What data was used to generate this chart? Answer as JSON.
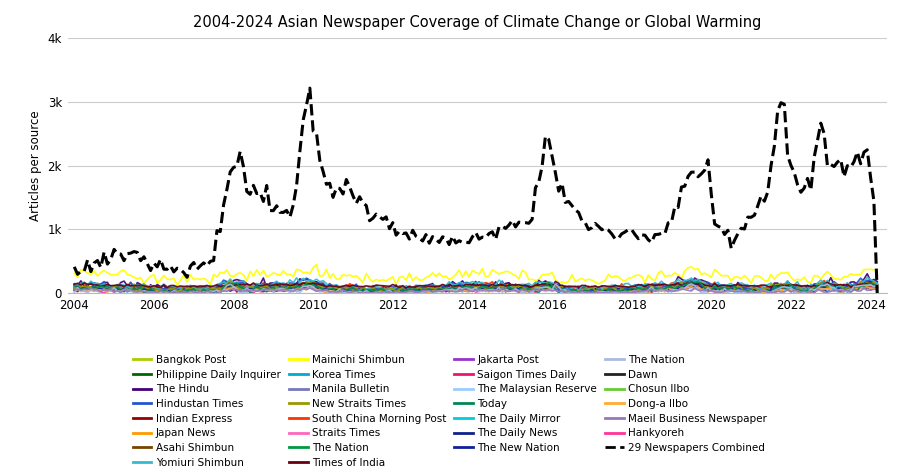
{
  "title": "2004-2024 Asian Newspaper Coverage of Climate Change or Global Warming",
  "ylabel": "Articles per source",
  "yticks": [
    0,
    1000,
    2000,
    3000,
    4000
  ],
  "ytick_labels": [
    "0",
    "1k",
    "2k",
    "3k",
    "4k"
  ],
  "ylim": [
    0,
    4000
  ],
  "xlim": [
    2003.83,
    2024.4
  ],
  "xticks": [
    2004,
    2006,
    2008,
    2010,
    2012,
    2014,
    2016,
    2018,
    2020,
    2022,
    2024
  ],
  "background_color": "#ffffff",
  "grid_color": "#cccccc",
  "legend_entries": [
    {
      "label": "Bangkok Post",
      "color": "#aacc00",
      "ls": "-"
    },
    {
      "label": "Indian Express",
      "color": "#990000",
      "ls": "-"
    },
    {
      "label": "Mainichi Shimbun",
      "color": "#ffff00",
      "ls": "-"
    },
    {
      "label": "South China Morning Post",
      "color": "#ff3300",
      "ls": "-"
    },
    {
      "label": "Jakarta Post",
      "color": "#9933cc",
      "ls": "-"
    },
    {
      "label": "The Daily Mirror",
      "color": "#00ccdd",
      "ls": "-"
    },
    {
      "label": "Dawn",
      "color": "#222222",
      "ls": "-"
    },
    {
      "label": "Hankyoreh",
      "color": "#ff3399",
      "ls": "-"
    },
    {
      "label": "Philippine Daily Inquirer",
      "color": "#006600",
      "ls": "-"
    },
    {
      "label": "Japan News",
      "color": "#ff9900",
      "ls": "-"
    },
    {
      "label": "Korea Times",
      "color": "#00aacc",
      "ls": "-"
    },
    {
      "label": "Straits Times",
      "color": "#ff66bb",
      "ls": "-"
    },
    {
      "label": "Saigon Times Daily",
      "color": "#ee1177",
      "ls": "-"
    },
    {
      "label": "The Daily News",
      "color": "#112288",
      "ls": "-"
    },
    {
      "label": "Chosun Ilbo",
      "color": "#66cc33",
      "ls": "-"
    },
    {
      "label": "29 Newspapers Combined",
      "color": "#000000",
      "ls": "--"
    },
    {
      "label": "The Hindu",
      "color": "#440077",
      "ls": "-"
    },
    {
      "label": "Asahi Shimbun",
      "color": "#774400",
      "ls": "-"
    },
    {
      "label": "Manila Bulletin",
      "color": "#7777bb",
      "ls": "-"
    },
    {
      "label": "The Nation",
      "color": "#009944",
      "ls": "-"
    },
    {
      "label": "The Malaysian Reserve",
      "color": "#99ccff",
      "ls": "-"
    },
    {
      "label": "The New Nation",
      "color": "#112299",
      "ls": "-"
    },
    {
      "label": "Dong-a Ilbo",
      "color": "#ffaa33",
      "ls": "-"
    },
    {
      "label": "Hindustan Times",
      "color": "#2255cc",
      "ls": "-"
    },
    {
      "label": "Yomiuri Shimbun",
      "color": "#33bbcc",
      "ls": "-"
    },
    {
      "label": "New Straits Times",
      "color": "#999900",
      "ls": "-"
    },
    {
      "label": "Times of India",
      "color": "#660011",
      "ls": "-"
    },
    {
      "label": "Today",
      "color": "#008855",
      "ls": "-"
    },
    {
      "label": "The Nation",
      "color": "#aabbdd",
      "ls": "-"
    },
    {
      "label": "Maeil Business Newspaper",
      "color": "#9977bb",
      "ls": "-"
    }
  ]
}
